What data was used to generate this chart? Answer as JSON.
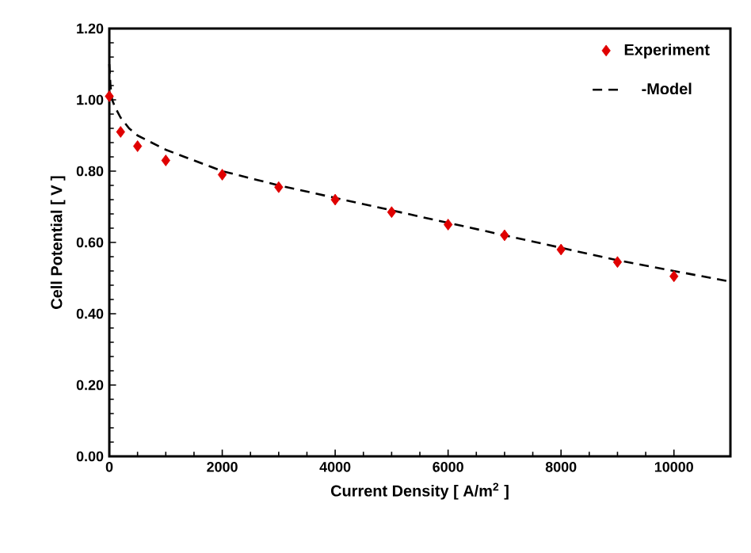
{
  "chart_data": {
    "type": "scatter",
    "xlabel": "Current Density [ A/m$^{2}$ ]",
    "ylabel": "Cell Potential [ V ]",
    "xlim": [
      0,
      11000
    ],
    "ylim": [
      0,
      1.2
    ],
    "xticks": [
      0,
      2000,
      4000,
      6000,
      8000,
      10000
    ],
    "yticks": [
      {
        "value": 0,
        "label": "0.00"
      },
      {
        "value": 0.2,
        "label": "0.20"
      },
      {
        "value": 0.4,
        "label": "0.40"
      },
      {
        "value": 0.6,
        "label": "0.60"
      },
      {
        "value": 0.8,
        "label": "0.80"
      },
      {
        "value": 1.0,
        "label": "1.00"
      },
      {
        "value": 1.2,
        "label": "1.20"
      }
    ],
    "grid": false,
    "legend": "top right",
    "series": [
      {
        "name": "Experiment",
        "marker": "diamond",
        "color": "#e00000",
        "x": [
          0,
          200,
          500,
          1000,
          2000,
          3000,
          4000,
          5000,
          6000,
          7000,
          8000,
          9000,
          10000
        ],
        "values": [
          1.01,
          0.91,
          0.87,
          0.83,
          0.79,
          0.755,
          0.72,
          0.685,
          0.65,
          0.62,
          0.58,
          0.545,
          0.505
        ]
      },
      {
        "name": "-Model",
        "type": "line",
        "marker": "none",
        "line_style": "dashed",
        "color": "#000000",
        "x": [
          0,
          20,
          50,
          100,
          200,
          350,
          500,
          750,
          1000,
          1500,
          2000,
          3000,
          4000,
          5000,
          6000,
          7000,
          8000,
          9000,
          10000,
          11000
        ],
        "values": [
          1.1,
          1.04,
          1.0,
          0.98,
          0.95,
          0.92,
          0.9,
          0.88,
          0.86,
          0.83,
          0.8,
          0.76,
          0.725,
          0.69,
          0.655,
          0.62,
          0.585,
          0.55,
          0.52,
          0.49
        ]
      }
    ]
  }
}
